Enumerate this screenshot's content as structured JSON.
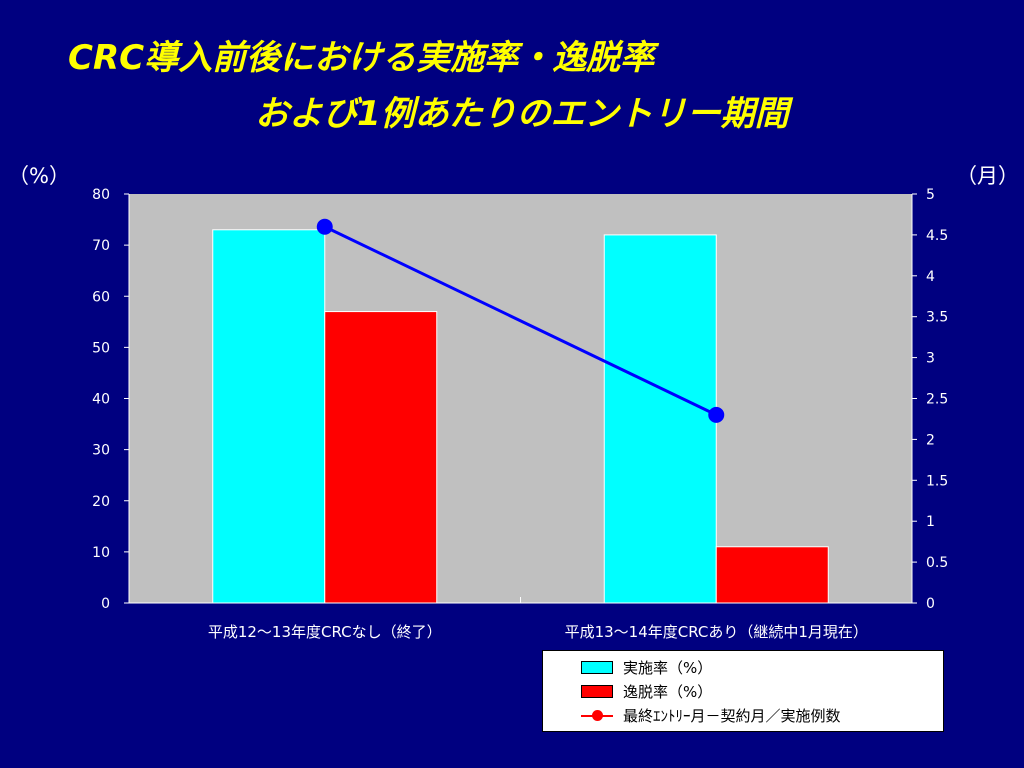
{
  "title": {
    "line1": "CRC導入前後における実施率・逸脱率",
    "line2": "および1例あたりのエントリー期間"
  },
  "units": {
    "left": "（%）",
    "right": "（月）"
  },
  "colors": {
    "background": "#000080",
    "plot_area": "#c0c0c0",
    "title": "#ffff00",
    "series_implementation": "#00ffff",
    "series_deviation": "#ff0000",
    "series_entry": "#0000ff",
    "legend_line_marker": "#ff0000"
  },
  "chart_data": {
    "type": "bar",
    "categories": [
      "平成12～13年度CRCなし（終了）",
      "平成13～14年度CRCあり（継続中1月現在）"
    ],
    "series": [
      {
        "name": "実施率（%）",
        "type": "bar",
        "axis": "left",
        "values": [
          73,
          72
        ]
      },
      {
        "name": "逸脱率（%）",
        "type": "bar",
        "axis": "left",
        "values": [
          57,
          11
        ]
      },
      {
        "name": "最終ｴﾝﾄﾘｰ月－契約月／実施例数",
        "type": "line",
        "axis": "right",
        "values": [
          4.6,
          2.3
        ]
      }
    ],
    "ylim_left": [
      0,
      80
    ],
    "yticks_left": [
      0,
      10,
      20,
      30,
      40,
      50,
      60,
      70,
      80
    ],
    "ylim_right": [
      0,
      5
    ],
    "yticks_right": [
      "0",
      "0.5",
      "1",
      "1.5",
      "2",
      "2.5",
      "3",
      "3.5",
      "4",
      "4.5",
      "5"
    ],
    "grid": false,
    "legend_position": "bottom-right"
  }
}
